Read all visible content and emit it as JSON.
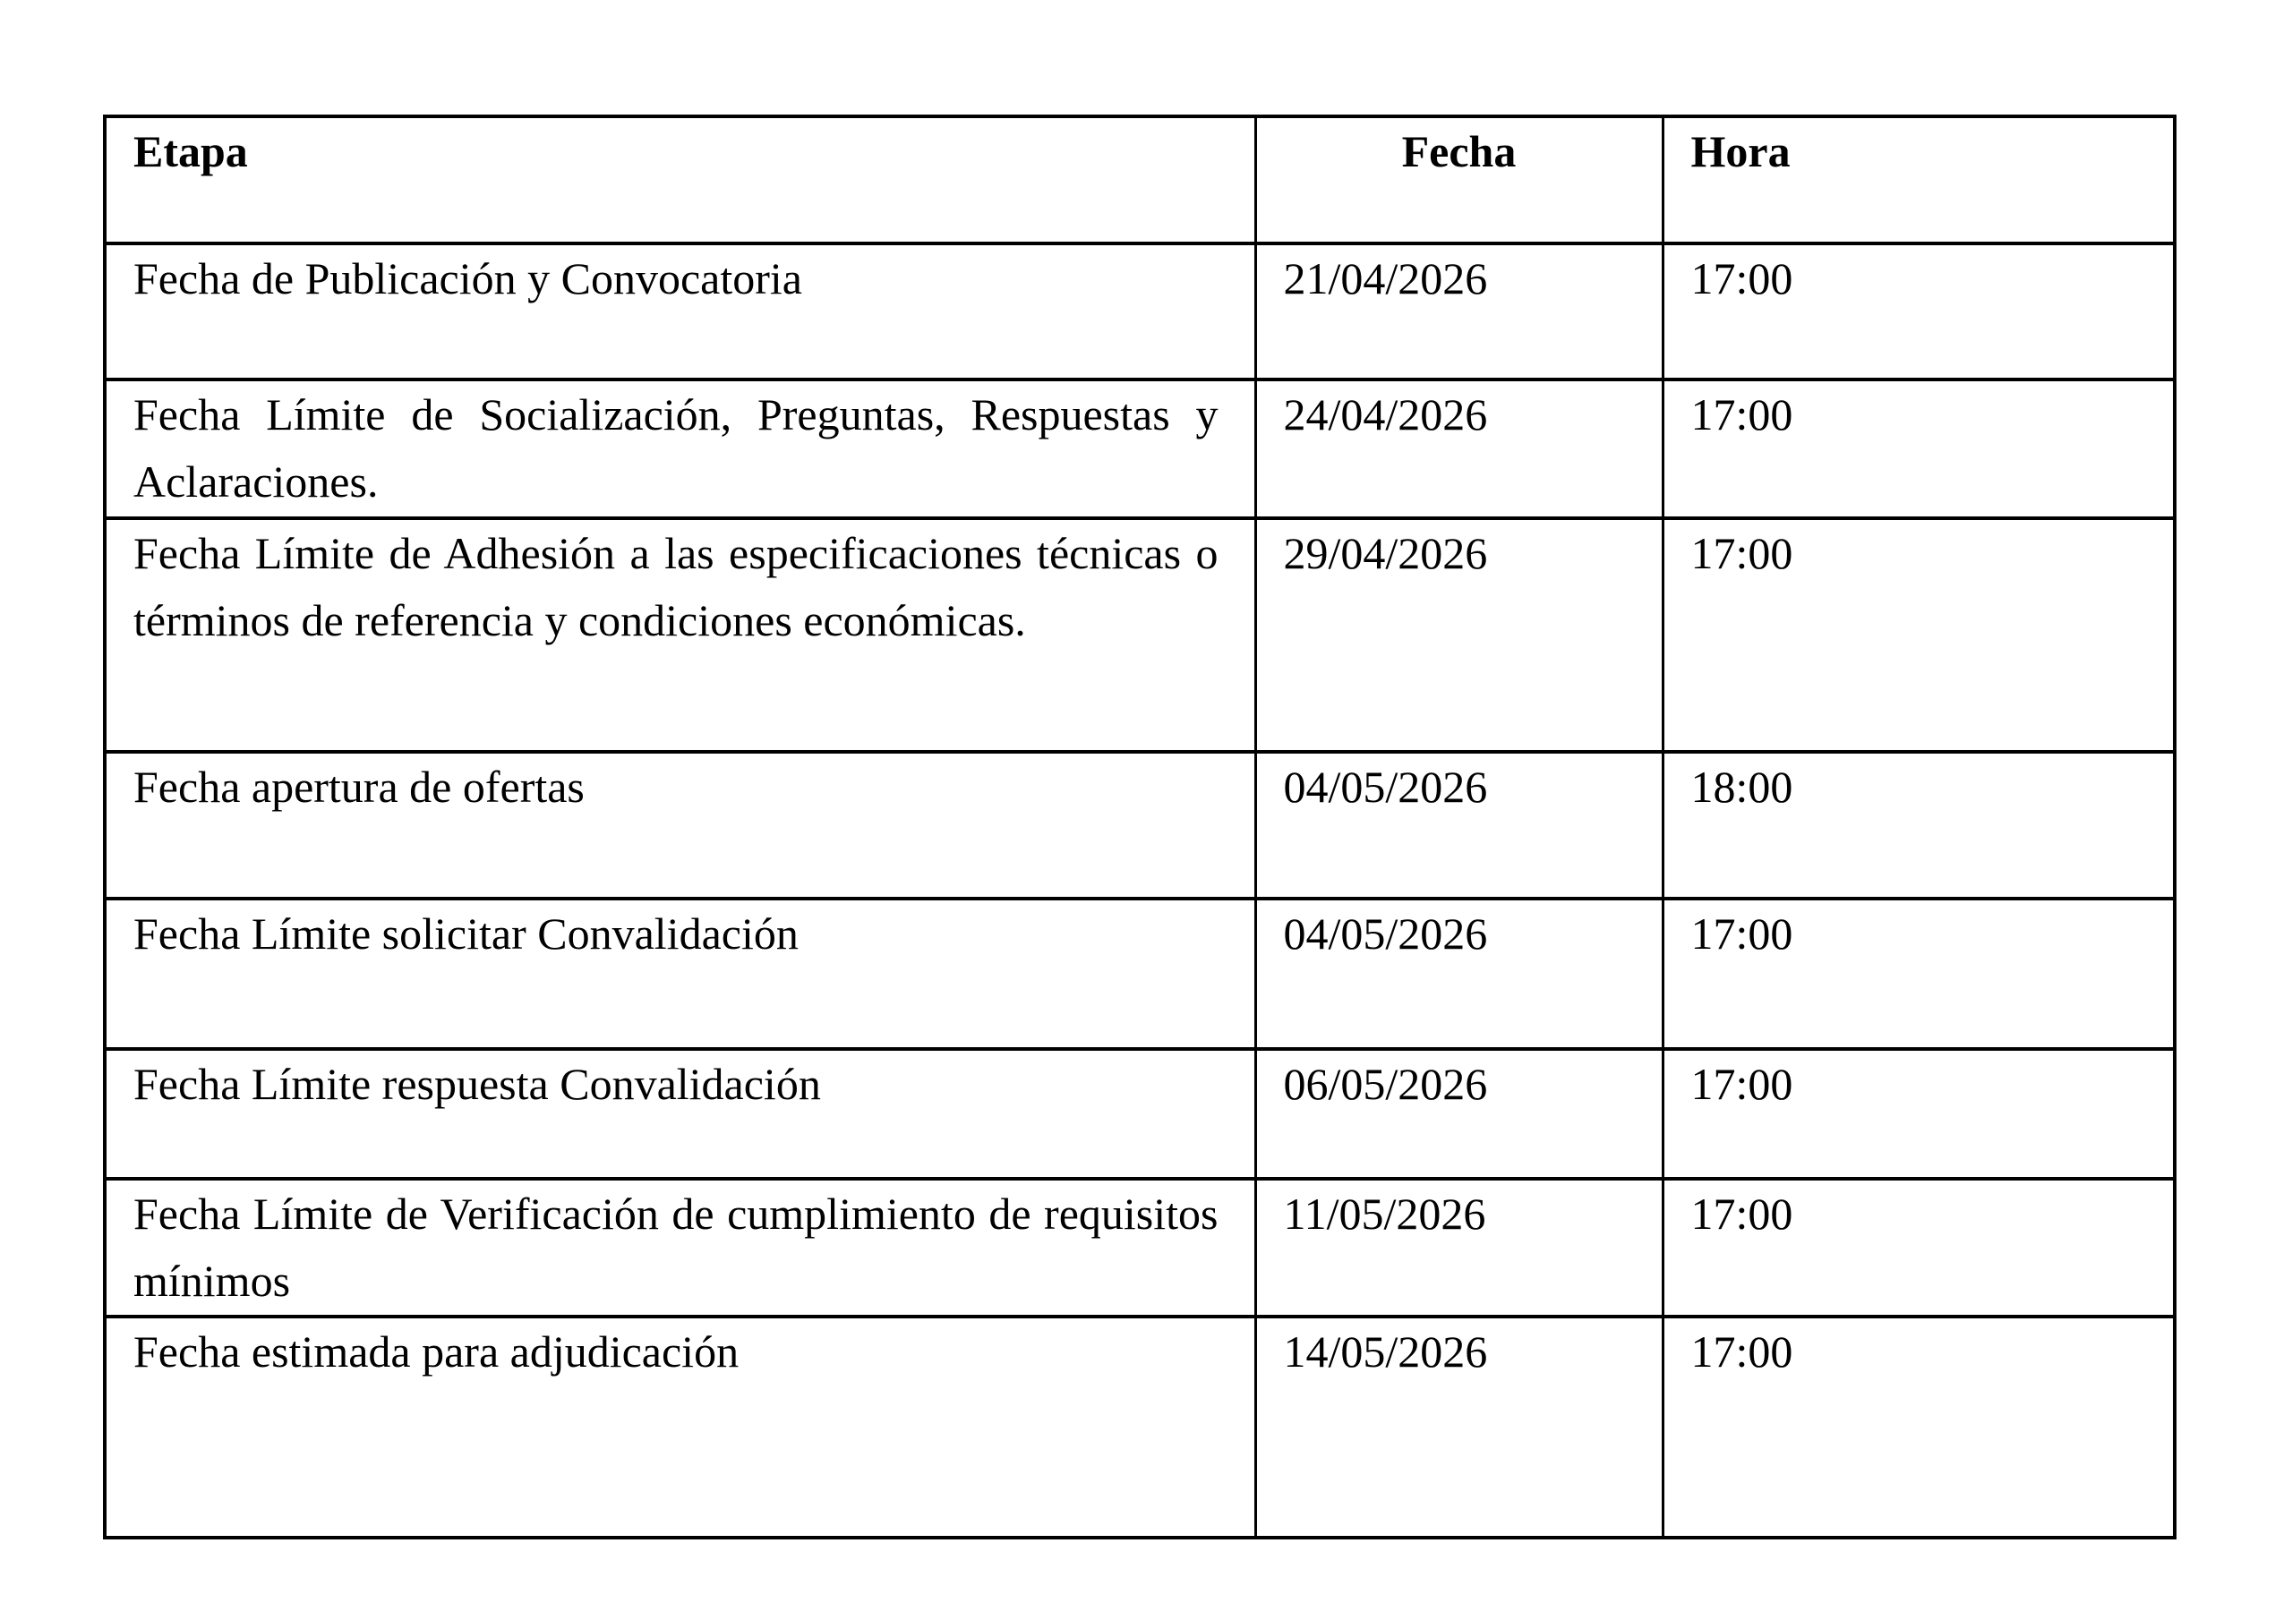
{
  "document": {
    "background_color": "#ffffff",
    "table": {
      "border_color": "#000000",
      "text_color": "#000000",
      "headers": {
        "etapa": "Etapa",
        "fecha": "Fecha",
        "hora": "Hora"
      },
      "rows": [
        {
          "etapa": "Fecha de Publicación y Convocatoria",
          "fecha": "21/04/2026",
          "hora": "17:00"
        },
        {
          "etapa": "Fecha Límite de Socialización, Preguntas, Respuestas y Aclaraciones.",
          "fecha": "24/04/2026",
          "hora": "17:00"
        },
        {
          "etapa": "Fecha Límite de Adhesión a las especificaciones técnicas o términos de referencia y condiciones económicas.",
          "fecha": "29/04/2026",
          "hora": "17:00"
        },
        {
          "etapa": "Fecha apertura de ofertas",
          "fecha": "04/05/2026",
          "hora": "18:00"
        },
        {
          "etapa": "Fecha Límite solicitar Convalidación",
          "fecha": "04/05/2026",
          "hora": "17:00"
        },
        {
          "etapa": "Fecha Límite respuesta Convalidación",
          "fecha": "06/05/2026",
          "hora": "17:00"
        },
        {
          "etapa": "Fecha Límite de Verificación de cumplimiento de requisitos mínimos",
          "fecha": "11/05/2026",
          "hora": "17:00"
        },
        {
          "etapa": "Fecha estimada para adjudicación",
          "fecha": "14/05/2026",
          "hora": "17:00"
        }
      ]
    }
  }
}
